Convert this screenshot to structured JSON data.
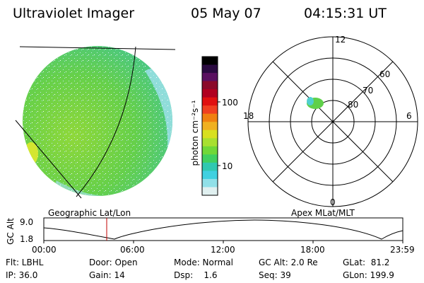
{
  "header": {
    "title": "Ultraviolet Imager",
    "date": "05 May 07",
    "time": "04:15:31 UT"
  },
  "colors": {
    "image_green": "#6bd43c",
    "image_cyan": "#3ccfc8",
    "marker_red": "#c00000",
    "ink": "#000000"
  },
  "colorbar": {
    "unit_label": "photon cm⁻²s⁻¹",
    "ticks": [
      "100",
      "10"
    ],
    "colors": [
      "#000000",
      "#2a0a40",
      "#5a1060",
      "#8a0a2a",
      "#b00020",
      "#e01010",
      "#f04020",
      "#f08010",
      "#f0b020",
      "#d8e020",
      "#a8e030",
      "#70d838",
      "#40d060",
      "#30c8b0",
      "#40d0e0",
      "#90e0e8",
      "#e0f0f0"
    ]
  },
  "polar": {
    "hour_labels": [
      "12",
      "18",
      "6",
      "0"
    ],
    "lat_labels": [
      "60",
      "70",
      "80"
    ]
  },
  "geo_label": "Geographic Lat/Lon",
  "apex_label": "Apex MLat/MLT",
  "altitude_plot": {
    "ylabel": "GC Alt",
    "ytick_top": "9.0",
    "ytick_bottom": "1.8",
    "xticks": [
      "00:00",
      "06:00",
      "12:00",
      "18:00",
      "23:59"
    ]
  },
  "info": {
    "flt": "Flt: LBHL",
    "ip": "IP: 36.0",
    "door": "Door: Open",
    "gain": "Gain: 14",
    "mode": "Mode: Normal",
    "dsp": "Dsp:    1.6",
    "gcalt": "GC Alt: 2.0 Re",
    "seq": "Seq: 39",
    "glat": "GLat:  81.2",
    "glon": "GLon: 199.9"
  }
}
